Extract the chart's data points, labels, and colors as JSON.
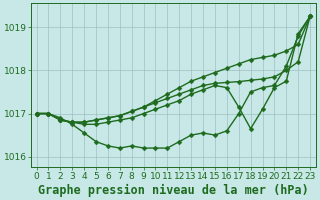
{
  "xlabel": "Graphe pression niveau de la mer (hPa)",
  "x": [
    0,
    1,
    2,
    3,
    4,
    5,
    6,
    7,
    8,
    9,
    10,
    11,
    12,
    13,
    14,
    15,
    16,
    17,
    18,
    19,
    20,
    21,
    22,
    23
  ],
  "series": [
    [
      1017.0,
      1017.0,
      1016.9,
      1016.75,
      1016.55,
      1016.35,
      1016.25,
      1016.2,
      1016.25,
      1016.2,
      1016.2,
      1016.2,
      1016.35,
      1016.5,
      1016.55,
      1016.5,
      1016.6,
      1017.0,
      1017.5,
      1017.6,
      1017.65,
      1018.1,
      1018.8,
      1019.25
    ],
    [
      1017.0,
      1017.0,
      1016.85,
      1016.8,
      1016.75,
      1016.75,
      1016.8,
      1016.85,
      1016.9,
      1017.0,
      1017.1,
      1017.2,
      1017.3,
      1017.45,
      1017.55,
      1017.65,
      1017.6,
      1017.15,
      1016.65,
      1017.1,
      1017.6,
      1017.75,
      1018.85,
      1019.25
    ],
    [
      1017.0,
      1017.0,
      1016.85,
      1016.8,
      1016.8,
      1016.85,
      1016.9,
      1016.95,
      1017.05,
      1017.15,
      1017.25,
      1017.35,
      1017.45,
      1017.55,
      1017.65,
      1017.7,
      1017.72,
      1017.74,
      1017.77,
      1017.8,
      1017.85,
      1018.0,
      1018.2,
      1019.25
    ],
    [
      1017.0,
      1017.0,
      1016.85,
      1016.8,
      1016.8,
      1016.85,
      1016.9,
      1016.95,
      1017.05,
      1017.15,
      1017.3,
      1017.45,
      1017.6,
      1017.75,
      1017.85,
      1017.95,
      1018.05,
      1018.15,
      1018.25,
      1018.3,
      1018.35,
      1018.45,
      1018.6,
      1019.25
    ]
  ],
  "line_color": "#1e6b1e",
  "marker": "D",
  "marker_size": 2.5,
  "bg_color": "#c8e8e8",
  "grid_color": "#9bbcbc",
  "ylim": [
    1015.75,
    1019.55
  ],
  "yticks": [
    1016,
    1017,
    1018,
    1019
  ],
  "xticks": [
    0,
    1,
    2,
    3,
    4,
    5,
    6,
    7,
    8,
    9,
    10,
    11,
    12,
    13,
    14,
    15,
    16,
    17,
    18,
    19,
    20,
    21,
    22,
    23
  ],
  "tick_fontsize": 6.5,
  "xlabel_fontsize": 8.5,
  "line_width": 1.0
}
